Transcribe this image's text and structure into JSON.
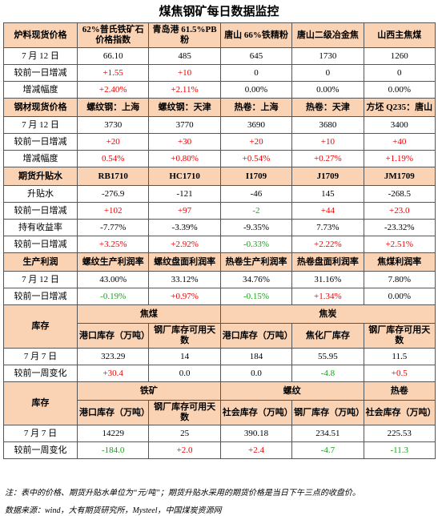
{
  "title": "煤焦钢矿每日数据监控",
  "sections": [
    {
      "header": [
        "炉料现货价格",
        "62%普氏铁矿石价格指数",
        "青岛港 61.5%PB粉",
        "唐山 66%铁精粉",
        "唐山二级冶金焦",
        "山西主焦煤"
      ],
      "rows": [
        [
          "7 月 12 日",
          "66.10",
          "485",
          "645",
          "1730",
          "1260"
        ],
        [
          "较前一日增减",
          "+1.55",
          "+10",
          "0",
          "0",
          "0"
        ],
        [
          "增减幅度",
          "+2.40%",
          "+2.11%",
          "0.00%",
          "0.00%",
          "0.00%"
        ]
      ]
    },
    {
      "header": [
        "钢材现货价格",
        "螺纹钢：上海",
        "螺纹钢：天津",
        "热卷：上海",
        "热卷：天津",
        "方坯 Q235：唐山"
      ],
      "rows": [
        [
          "7 月 12 日",
          "3730",
          "3770",
          "3690",
          "3680",
          "3400"
        ],
        [
          "较前一日增减",
          "+20",
          "+30",
          "+20",
          "+10",
          "+40"
        ],
        [
          "增减幅度",
          "0.54%",
          "+0.80%",
          "+0.54%",
          "+0.27%",
          "+1.19%"
        ]
      ]
    },
    {
      "header": [
        "期货升贴水",
        "RB1710",
        "HC1710",
        "I1709",
        "J1709",
        "JM1709"
      ],
      "rows": [
        [
          "升贴水",
          "-276.9",
          "-121",
          "-46",
          "145",
          "-268.5"
        ],
        [
          "较前一日增减",
          "+102",
          "+97",
          "-2",
          "+44",
          "+23.0"
        ],
        [
          "持有收益率",
          "-7.77%",
          "-3.39%",
          "-9.35%",
          "7.73%",
          "-23.32%"
        ],
        [
          "较前一日增减",
          "+3.25%",
          "+2.92%",
          "-0.33%",
          "+2.22%",
          "+2.51%"
        ]
      ]
    },
    {
      "header": [
        "生产利润",
        "螺纹生产利润率",
        "螺纹盘面利润率",
        "热卷生产利润率",
        "热卷盘面利润率",
        "焦煤利润率"
      ],
      "rows": [
        [
          "7 月 12 日",
          "43.00%",
          "33.12%",
          "34.76%",
          "31.16%",
          "7.80%"
        ],
        [
          "较前一日增减",
          "-0.19%",
          "+0.97%",
          "-0.15%",
          "+1.34%",
          "0.00%"
        ]
      ]
    },
    {
      "label": "库存",
      "groups": [
        {
          "label": "焦煤",
          "columns": [
            "港口库存（万吨）",
            "钢厂库存可用天数"
          ]
        },
        {
          "label": "焦炭",
          "columns": [
            "港口库存（万吨）",
            "焦化厂库存",
            "钢厂库存可用天数"
          ]
        }
      ],
      "rows": [
        [
          "7 月 7 日",
          "323.29",
          "14",
          "184",
          "55.95",
          "11.5"
        ],
        [
          "较前一周变化",
          "+30.4",
          "0.0",
          "0.0",
          "-4.8",
          "+0.5"
        ]
      ]
    },
    {
      "label": "库存",
      "groups": [
        {
          "label": "铁矿",
          "columns": [
            "港口库存（万吨）",
            "钢厂库存可用天数"
          ]
        },
        {
          "label": "螺纹",
          "columns": [
            "社会库存（万吨）",
            "钢厂库存（万吨）"
          ]
        },
        {
          "label": "热卷",
          "columns": [
            "社会库存（万吨）"
          ]
        }
      ],
      "rows": [
        [
          "7 月 7 日",
          "14229",
          "25",
          "390.18",
          "234.51",
          "225.53"
        ],
        [
          "较前一周变化",
          "-184.0",
          "+2.0",
          "+2.4",
          "-4.7",
          "-11.3"
        ]
      ]
    }
  ],
  "note": "注：表中的价格、期货升贴水单位为“元/吨”；期货升贴水采用的期货价格是当日下午三点的收盘价。",
  "source": "数据来源：wind，大有期货研究所，Mysteel，中国煤炭资源网"
}
